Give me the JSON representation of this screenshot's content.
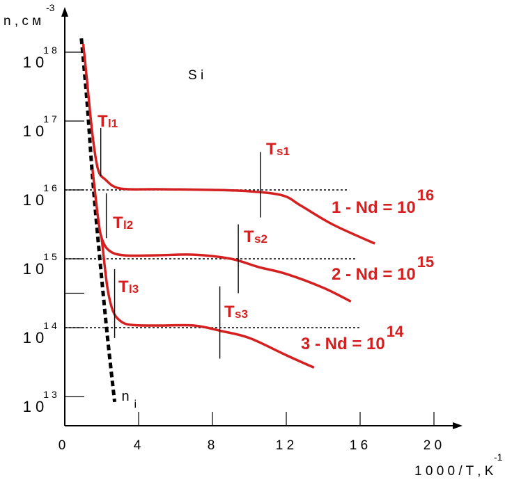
{
  "chart_data": {
    "type": "line",
    "title": "",
    "material_label": "S i",
    "ylabel": {
      "main": "n , с м",
      "exp": "-3"
    },
    "xlabel": {
      "main": "1 0 0 0 / T , K",
      "exp": "-1"
    },
    "xlim": [
      0,
      22.5
    ],
    "ylim_log10": [
      12.6,
      18.6
    ],
    "y_log_scale": true,
    "x_ticks": [
      {
        "value": 0,
        "label": "0"
      },
      {
        "value": 4,
        "label": "4"
      },
      {
        "value": 8,
        "label": "8"
      },
      {
        "value": 12,
        "label": "1 2"
      },
      {
        "value": 16,
        "label": "1 6"
      },
      {
        "value": 20,
        "label": "2 0"
      }
    ],
    "y_ticks": [
      {
        "log": 18,
        "base": "1 0",
        "exp": "1 8"
      },
      {
        "log": 17,
        "base": "1 0",
        "exp": "1 7"
      },
      {
        "log": 16,
        "base": "1 0",
        "exp": "1 6"
      },
      {
        "log": 15,
        "base": "1 0",
        "exp": "1 5"
      },
      {
        "log": 14.5,
        "base": "",
        "exp": ""
      },
      {
        "log": 14,
        "base": "1 0",
        "exp": "1 4"
      },
      {
        "log": 13,
        "base": "1 0",
        "exp": "1 3"
      }
    ],
    "series": [
      {
        "name": "1 -  Nd = 10",
        "exp": "16",
        "color": "#d42020",
        "x": [
          1.0,
          1.2,
          1.5,
          1.8,
          2.2,
          3.0,
          5.0,
          8.0,
          10.0,
          11.8,
          12.8,
          14.5,
          16.8
        ],
        "log_n": [
          18.12,
          17.6,
          16.8,
          16.3,
          16.15,
          16.02,
          16.01,
          16.0,
          15.98,
          15.92,
          15.77,
          15.5,
          15.22
        ]
      },
      {
        "name": "2 -  Nd = 10",
        "exp": "15",
        "color": "#d42020",
        "x": [
          1.5,
          1.8,
          2.0,
          2.4,
          3.2,
          5.0,
          7.0,
          9.0,
          10.5,
          12.0,
          14.0,
          15.5
        ],
        "log_n": [
          16.3,
          15.6,
          15.3,
          15.12,
          15.05,
          15.05,
          15.06,
          15.0,
          14.88,
          14.78,
          14.58,
          14.38
        ]
      },
      {
        "name": "3 - Nd = 10",
        "exp": "14",
        "color": "#d42020",
        "x": [
          2.0,
          2.3,
          2.6,
          3.0,
          3.6,
          5.0,
          7.0,
          8.5,
          10.0,
          12.0,
          13.5
        ],
        "log_n": [
          15.3,
          14.6,
          14.25,
          14.1,
          14.04,
          14.03,
          14.03,
          13.95,
          13.85,
          13.6,
          13.42
        ]
      }
    ],
    "intrinsic": {
      "name": "n",
      "sub": "i",
      "color": "#000000",
      "x": [
        0.9,
        1.2,
        1.5,
        1.9,
        2.3,
        2.7
      ],
      "log_n": [
        18.2,
        17.3,
        16.2,
        15.0,
        13.9,
        12.92
      ]
    },
    "reference_levels_log_n": [
      16,
      15,
      14
    ],
    "reference_level_x_end": [
      15.4,
      15.8,
      16.0
    ],
    "markers": [
      {
        "label": "T",
        "sub": "l1",
        "x": 1.95,
        "log_n": [
          16.2,
          16.9
        ]
      },
      {
        "label": "T",
        "sub": "l2",
        "x": 2.25,
        "log_n": [
          15.3,
          15.95
        ]
      },
      {
        "label": "T",
        "sub": "l3",
        "x": 2.7,
        "log_n": [
          13.85,
          14.85
        ]
      },
      {
        "label": "T",
        "sub": "s1",
        "x": 10.6,
        "log_n": [
          15.6,
          16.55
        ]
      },
      {
        "label": "T",
        "sub": "s2",
        "x": 9.4,
        "log_n": [
          14.5,
          15.5
        ]
      },
      {
        "label": "T",
        "sub": "s3",
        "x": 8.4,
        "log_n": [
          13.55,
          14.6
        ]
      }
    ]
  }
}
